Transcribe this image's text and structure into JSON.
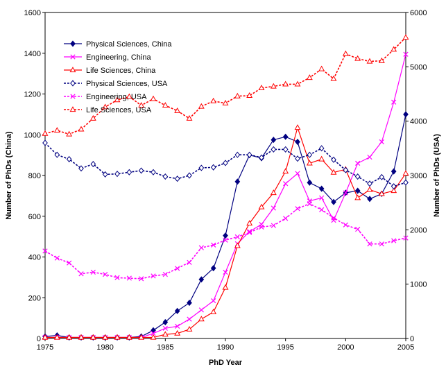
{
  "chart_data": {
    "type": "line",
    "xlabel": "PhD Year",
    "ylabel_left": "Number of PhDs (China)",
    "ylabel_right": "Number of PhDs (USA)",
    "x": [
      1975,
      1976,
      1977,
      1978,
      1979,
      1980,
      1981,
      1982,
      1983,
      1984,
      1985,
      1986,
      1987,
      1988,
      1989,
      1990,
      1991,
      1992,
      1993,
      1994,
      1995,
      1996,
      1997,
      1998,
      1999,
      2000,
      2001,
      2002,
      2003,
      2004,
      2005
    ],
    "x_ticks": [
      1975,
      1980,
      1985,
      1990,
      1995,
      2000,
      2005
    ],
    "ylim_left": [
      0,
      1600
    ],
    "yticks_left": [
      0,
      200,
      400,
      600,
      800,
      1000,
      1200,
      1400,
      1600
    ],
    "ylim_right": [
      0,
      6000
    ],
    "yticks_right": [
      0,
      1000,
      2000,
      3000,
      4000,
      5000,
      6000
    ],
    "legend_position": "top-left",
    "grid": false,
    "series": [
      {
        "name": "Physical Sciences, China",
        "axis": "left",
        "color": "#000080",
        "dash": "solid",
        "marker": "diamond",
        "marker_fill": "filled",
        "values": [
          10,
          15,
          5,
          5,
          5,
          5,
          5,
          5,
          10,
          40,
          80,
          135,
          175,
          290,
          345,
          505,
          770,
          900,
          885,
          975,
          990,
          965,
          765,
          735,
          670,
          715,
          725,
          685,
          710,
          820,
          1100
        ]
      },
      {
        "name": "Engineering, China",
        "axis": "left",
        "color": "#ff00ff",
        "dash": "solid",
        "marker": "x",
        "marker_fill": "none",
        "values": [
          5,
          5,
          5,
          5,
          5,
          5,
          5,
          5,
          5,
          25,
          50,
          60,
          95,
          140,
          185,
          325,
          465,
          525,
          560,
          640,
          760,
          810,
          675,
          690,
          580,
          715,
          860,
          890,
          965,
          1160,
          1395
        ]
      },
      {
        "name": "Life Sciences, China",
        "axis": "left",
        "color": "#ff0000",
        "dash": "solid",
        "marker": "triangle",
        "marker_fill": "open",
        "values": [
          5,
          5,
          5,
          5,
          5,
          5,
          5,
          5,
          5,
          5,
          20,
          25,
          45,
          95,
          130,
          250,
          455,
          565,
          645,
          715,
          820,
          1035,
          860,
          880,
          815,
          830,
          690,
          730,
          710,
          725,
          810
        ]
      },
      {
        "name": "Physical Sciences, USA",
        "axis": "right",
        "color": "#000080",
        "dash": "dashed",
        "marker": "diamond",
        "marker_fill": "open",
        "values": [
          3600,
          3380,
          3300,
          3130,
          3210,
          3020,
          3030,
          3060,
          3090,
          3060,
          2980,
          2940,
          3000,
          3140,
          3150,
          3230,
          3380,
          3380,
          3330,
          3480,
          3480,
          3310,
          3380,
          3500,
          3290,
          3100,
          2980,
          2850,
          2970,
          2800,
          2870
        ]
      },
      {
        "name": "Engineering, USA",
        "axis": "right",
        "color": "#ff00ff",
        "dash": "dashed",
        "marker": "x",
        "marker_fill": "none",
        "values": [
          1610,
          1480,
          1390,
          1190,
          1220,
          1180,
          1120,
          1110,
          1100,
          1150,
          1180,
          1290,
          1400,
          1670,
          1720,
          1810,
          1870,
          1950,
          2050,
          2080,
          2210,
          2390,
          2480,
          2370,
          2220,
          2090,
          2010,
          1740,
          1740,
          1800,
          1850
        ]
      },
      {
        "name": "Life Sciences, USA",
        "axis": "right",
        "color": "#ff0000",
        "dash": "dashed",
        "marker": "triangle",
        "marker_fill": "open",
        "values": [
          3770,
          3830,
          3760,
          3850,
          4050,
          4260,
          4390,
          4450,
          4290,
          4410,
          4290,
          4190,
          4050,
          4270,
          4370,
          4330,
          4460,
          4470,
          4610,
          4640,
          4680,
          4680,
          4800,
          4960,
          4780,
          5240,
          5150,
          5100,
          5110,
          5320,
          5540
        ]
      }
    ]
  }
}
